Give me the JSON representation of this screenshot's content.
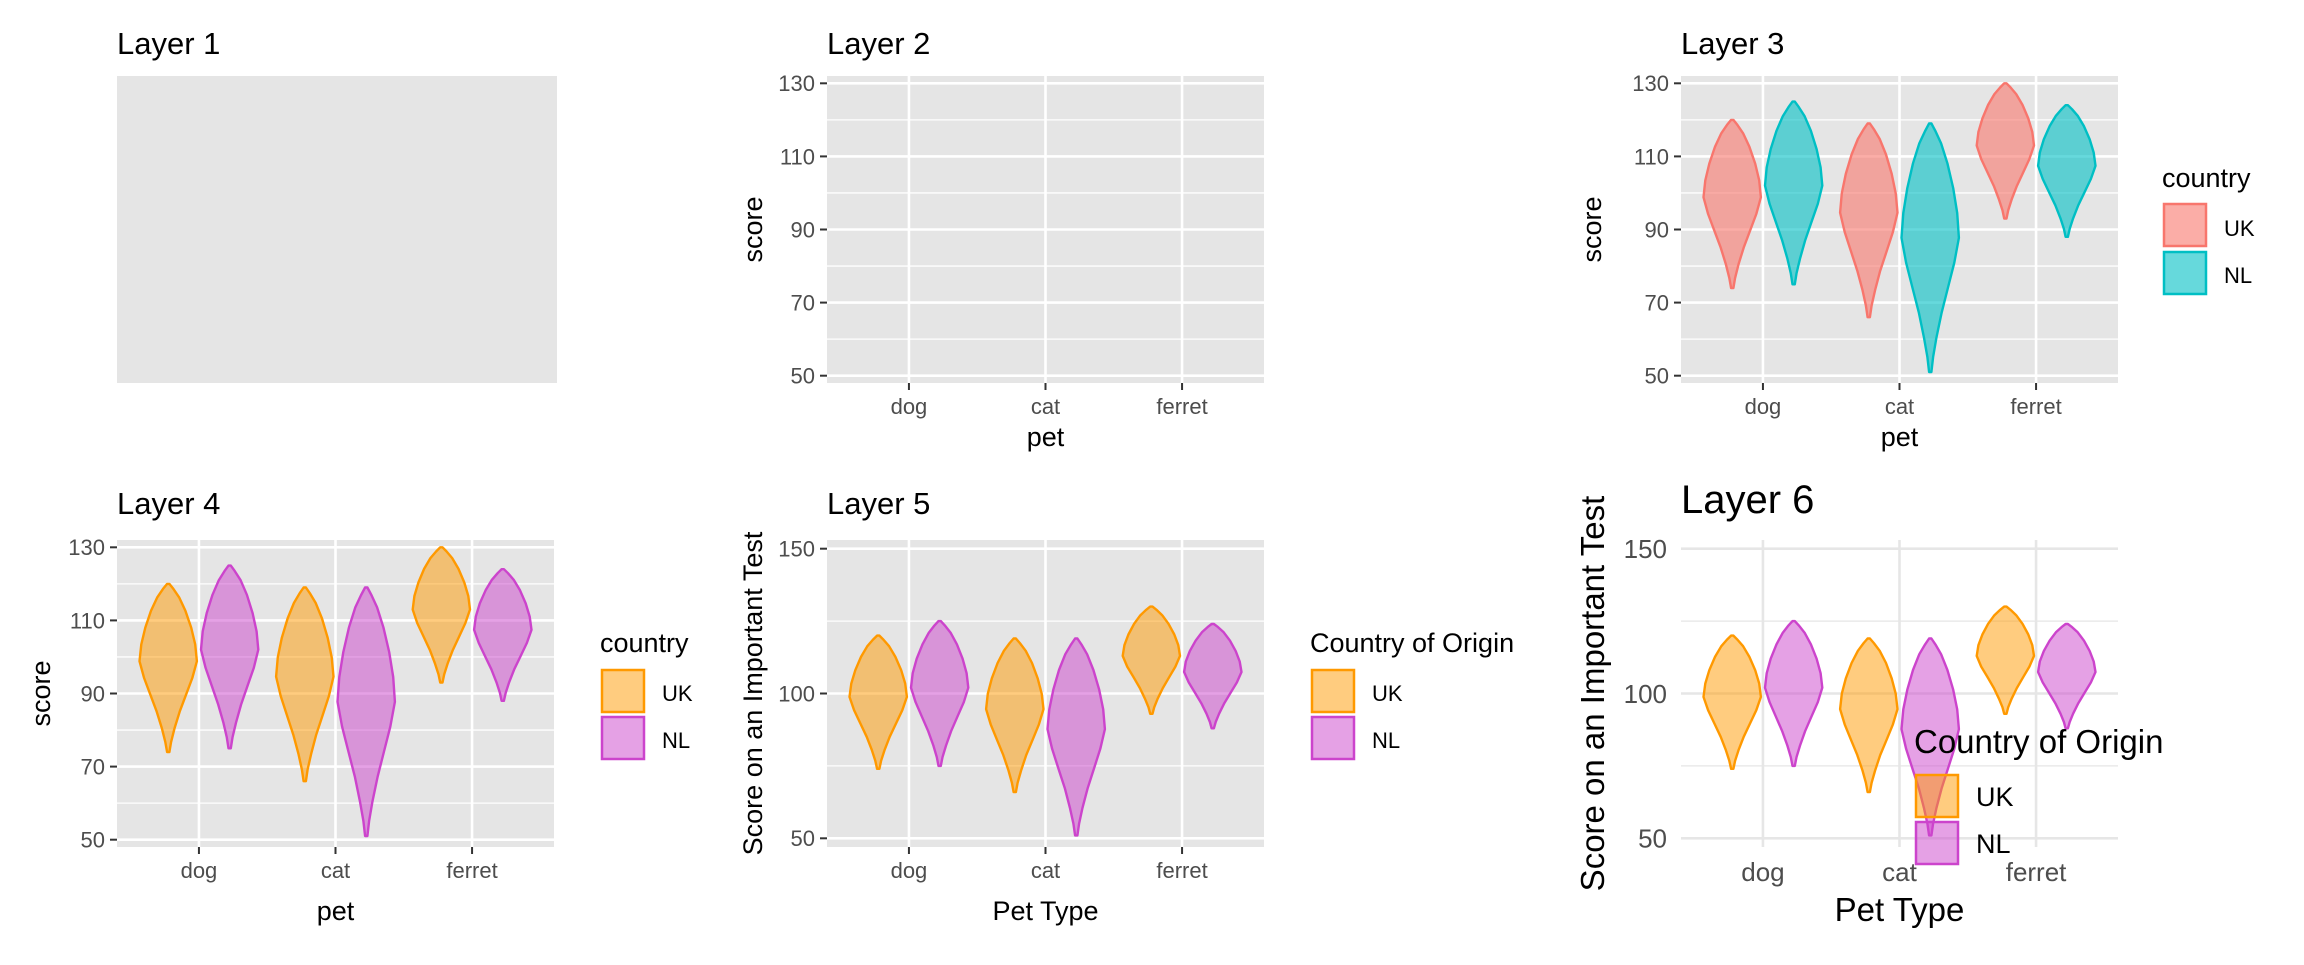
{
  "colors": {
    "panel_bg": "#e5e5e5",
    "grid": "#ffffff",
    "minimal_grid": "#e6e6e6",
    "uk_default": "#f8766d",
    "nl_default": "#00bfc4",
    "uk_custom": "#ff9900",
    "nl_custom": "#cc44cc",
    "text": "#000000",
    "tick_text": "#4d4d4d"
  },
  "chart_data": [
    {
      "type": "violin",
      "title": "Layer 1",
      "theme": "blank-panel",
      "xlabel": "",
      "ylabel": "",
      "categories": [],
      "series": []
    },
    {
      "type": "violin",
      "title": "Layer 2",
      "theme": "gray",
      "xlabel": "pet",
      "ylabel": "score",
      "categories": [
        "dog",
        "cat",
        "ferret"
      ],
      "ylim": [
        48,
        132
      ],
      "yticks": [
        50,
        70,
        90,
        110,
        130
      ],
      "series": []
    },
    {
      "type": "violin",
      "title": "Layer 3",
      "theme": "gray",
      "xlabel": "pet",
      "ylabel": "score",
      "categories": [
        "dog",
        "cat",
        "ferret"
      ],
      "ylim": [
        48,
        132
      ],
      "yticks": [
        50,
        70,
        90,
        110,
        130
      ],
      "palette": "default",
      "legend": {
        "title": "country",
        "position": "right",
        "entries": [
          "UK",
          "NL"
        ]
      },
      "series": [
        {
          "name": "UK",
          "ranges": [
            [
              74,
              120
            ],
            [
              66,
              119
            ],
            [
              93,
              130
            ]
          ]
        },
        {
          "name": "NL",
          "ranges": [
            [
              75,
              125
            ],
            [
              51,
              119
            ],
            [
              88,
              124
            ]
          ]
        }
      ]
    },
    {
      "type": "violin",
      "title": "Layer 4",
      "theme": "gray",
      "xlabel": "pet",
      "ylabel": "score",
      "categories": [
        "dog",
        "cat",
        "ferret"
      ],
      "ylim": [
        48,
        132
      ],
      "yticks": [
        50,
        70,
        90,
        110,
        130
      ],
      "palette": "custom",
      "legend": {
        "title": "country",
        "position": "right",
        "entries": [
          "UK",
          "NL"
        ]
      },
      "series": [
        {
          "name": "UK",
          "ranges": [
            [
              74,
              120
            ],
            [
              66,
              119
            ],
            [
              93,
              130
            ]
          ]
        },
        {
          "name": "NL",
          "ranges": [
            [
              75,
              125
            ],
            [
              51,
              119
            ],
            [
              88,
              124
            ]
          ]
        }
      ]
    },
    {
      "type": "violin",
      "title": "Layer 5",
      "theme": "gray",
      "xlabel": "Pet Type",
      "ylabel": "Score on an Important Test",
      "categories": [
        "dog",
        "cat",
        "ferret"
      ],
      "ylim": [
        47,
        153
      ],
      "yticks": [
        50,
        100,
        150
      ],
      "palette": "custom",
      "legend": {
        "title": "Country of Origin",
        "position": "right",
        "entries": [
          "UK",
          "NL"
        ]
      },
      "series": [
        {
          "name": "UK",
          "ranges": [
            [
              74,
              120
            ],
            [
              66,
              119
            ],
            [
              93,
              130
            ]
          ]
        },
        {
          "name": "NL",
          "ranges": [
            [
              75,
              125
            ],
            [
              51,
              119
            ],
            [
              88,
              124
            ]
          ]
        }
      ]
    },
    {
      "type": "violin",
      "title": "Layer 6",
      "theme": "minimal",
      "xlabel": "Pet Type",
      "ylabel": "Score on an Important Test",
      "categories": [
        "dog",
        "cat",
        "ferret"
      ],
      "ylim": [
        47,
        153
      ],
      "yticks": [
        50,
        100,
        150
      ],
      "palette": "custom",
      "legend": {
        "title": "Country of Origin",
        "position": "inside-bottom-right",
        "entries": [
          "UK",
          "NL"
        ]
      },
      "series": [
        {
          "name": "UK",
          "ranges": [
            [
              74,
              120
            ],
            [
              66,
              119
            ],
            [
              93,
              130
            ]
          ]
        },
        {
          "name": "NL",
          "ranges": [
            [
              75,
              125
            ],
            [
              51,
              119
            ],
            [
              88,
              124
            ]
          ]
        }
      ]
    }
  ]
}
